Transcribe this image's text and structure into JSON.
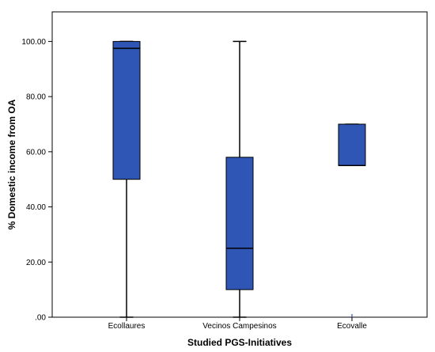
{
  "chart_data": {
    "type": "box",
    "xlabel": "Studied PGS-Initiatives",
    "ylabel": "% Domestic income from OA",
    "ylim": [
      0,
      110
    ],
    "yticks": [
      0,
      20,
      40,
      60,
      80,
      100
    ],
    "ytick_labels": [
      ".00",
      "20.00",
      "40.00",
      "60.00",
      "80.00",
      "100.00"
    ],
    "grid": false,
    "box_color": "#2f56b5",
    "categories": [
      "Ecollaures",
      "Vecinos Campesinos",
      "Ecovalle"
    ],
    "boxes": [
      {
        "category": "Ecollaures",
        "min": 0,
        "q1": 50,
        "median": 97.5,
        "q3": 100,
        "max": 100,
        "outliers": []
      },
      {
        "category": "Vecinos Campesinos",
        "min": 0,
        "q1": 10,
        "median": 25,
        "q3": 58,
        "max": 100,
        "outliers": []
      },
      {
        "category": "Ecovalle",
        "min": 55,
        "q1": 55,
        "median": 55,
        "q3": 70,
        "max": 70,
        "outliers": [
          0
        ]
      }
    ]
  }
}
